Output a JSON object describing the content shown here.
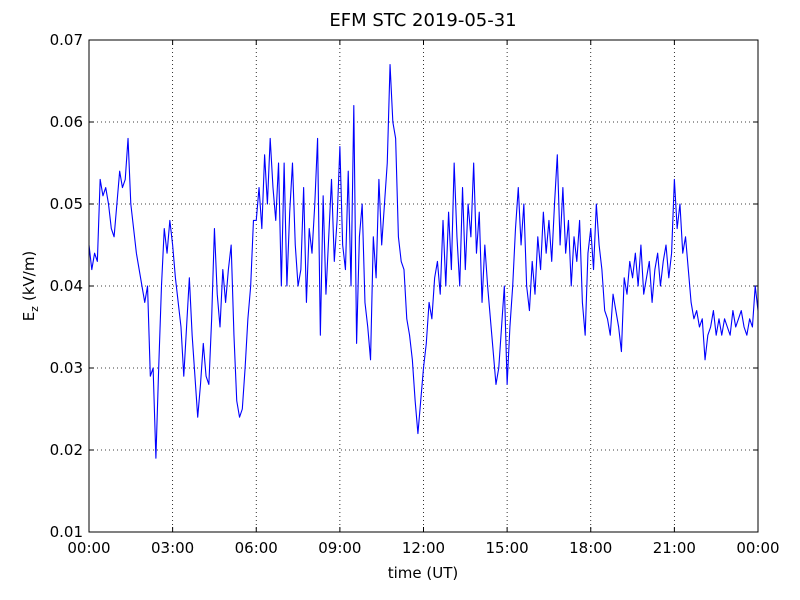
{
  "chart_data": {
    "type": "line",
    "title": "EFM STC    2019-05-31",
    "xlabel": "time (UT)",
    "ylabel": {
      "base": "E",
      "sub": "z",
      "unit": "(kV/m)"
    },
    "xlim": [
      0,
      1440
    ],
    "xticks": [
      {
        "value": 0,
        "label": "00:00"
      },
      {
        "value": 180,
        "label": "03:00"
      },
      {
        "value": 360,
        "label": "06:00"
      },
      {
        "value": 540,
        "label": "09:00"
      },
      {
        "value": 720,
        "label": "12:00"
      },
      {
        "value": 900,
        "label": "15:00"
      },
      {
        "value": 1080,
        "label": "18:00"
      },
      {
        "value": 1260,
        "label": "21:00"
      },
      {
        "value": 1440,
        "label": "00:00"
      }
    ],
    "ylim": [
      0.01,
      0.07
    ],
    "yticks": [
      0.01,
      0.02,
      0.03,
      0.04,
      0.05,
      0.06,
      0.07
    ],
    "grid": true,
    "x": [
      0,
      6,
      12,
      18,
      24,
      30,
      36,
      42,
      48,
      54,
      60,
      66,
      72,
      78,
      84,
      90,
      96,
      102,
      108,
      114,
      120,
      126,
      132,
      138,
      144,
      150,
      156,
      162,
      168,
      174,
      180,
      186,
      192,
      198,
      204,
      210,
      216,
      222,
      228,
      234,
      240,
      246,
      252,
      258,
      264,
      270,
      276,
      282,
      288,
      294,
      300,
      306,
      312,
      318,
      324,
      330,
      336,
      342,
      348,
      354,
      360,
      366,
      372,
      378,
      384,
      390,
      396,
      402,
      408,
      414,
      420,
      426,
      432,
      438,
      444,
      450,
      456,
      462,
      468,
      474,
      480,
      486,
      492,
      498,
      504,
      510,
      516,
      522,
      528,
      534,
      540,
      546,
      552,
      558,
      564,
      570,
      576,
      582,
      588,
      594,
      600,
      606,
      612,
      618,
      624,
      630,
      636,
      642,
      648,
      654,
      660,
      666,
      672,
      678,
      684,
      690,
      696,
      702,
      708,
      714,
      720,
      726,
      732,
      738,
      744,
      750,
      756,
      762,
      768,
      774,
      780,
      786,
      792,
      798,
      804,
      810,
      816,
      822,
      828,
      834,
      840,
      846,
      852,
      858,
      864,
      870,
      876,
      882,
      888,
      894,
      900,
      906,
      912,
      918,
      924,
      930,
      936,
      942,
      948,
      954,
      960,
      966,
      972,
      978,
      984,
      990,
      996,
      1002,
      1008,
      1014,
      1020,
      1026,
      1032,
      1038,
      1044,
      1050,
      1056,
      1062,
      1068,
      1074,
      1080,
      1086,
      1092,
      1098,
      1104,
      1110,
      1116,
      1122,
      1128,
      1134,
      1140,
      1146,
      1152,
      1158,
      1164,
      1170,
      1176,
      1182,
      1188,
      1194,
      1200,
      1206,
      1212,
      1218,
      1224,
      1230,
      1236,
      1242,
      1248,
      1254,
      1260,
      1266,
      1272,
      1278,
      1284,
      1290,
      1296,
      1302,
      1308,
      1314,
      1320,
      1326,
      1332,
      1338,
      1344,
      1350,
      1356,
      1362,
      1368,
      1374,
      1380,
      1386,
      1392,
      1398,
      1404,
      1410,
      1416,
      1422,
      1428,
      1434,
      1440
    ],
    "series": [
      {
        "name": "Ez",
        "color": "#0000ff",
        "values": [
          0.045,
          0.042,
          0.044,
          0.043,
          0.053,
          0.051,
          0.052,
          0.05,
          0.047,
          0.046,
          0.05,
          0.054,
          0.052,
          0.053,
          0.058,
          0.05,
          0.047,
          0.044,
          0.042,
          0.04,
          0.038,
          0.04,
          0.029,
          0.03,
          0.019,
          0.03,
          0.04,
          0.047,
          0.044,
          0.048,
          0.045,
          0.041,
          0.038,
          0.035,
          0.029,
          0.035,
          0.041,
          0.034,
          0.029,
          0.024,
          0.028,
          0.033,
          0.029,
          0.028,
          0.036,
          0.047,
          0.039,
          0.035,
          0.042,
          0.038,
          0.042,
          0.045,
          0.034,
          0.026,
          0.024,
          0.025,
          0.03,
          0.036,
          0.04,
          0.048,
          0.048,
          0.052,
          0.047,
          0.056,
          0.05,
          0.058,
          0.052,
          0.048,
          0.055,
          0.04,
          0.055,
          0.04,
          0.049,
          0.055,
          0.045,
          0.04,
          0.042,
          0.052,
          0.038,
          0.047,
          0.044,
          0.05,
          0.058,
          0.034,
          0.051,
          0.039,
          0.046,
          0.053,
          0.043,
          0.048,
          0.057,
          0.045,
          0.042,
          0.054,
          0.04,
          0.062,
          0.033,
          0.046,
          0.05,
          0.038,
          0.035,
          0.031,
          0.046,
          0.041,
          0.053,
          0.045,
          0.05,
          0.055,
          0.067,
          0.06,
          0.058,
          0.046,
          0.043,
          0.042,
          0.036,
          0.034,
          0.031,
          0.026,
          0.022,
          0.026,
          0.03,
          0.033,
          0.038,
          0.036,
          0.041,
          0.043,
          0.039,
          0.048,
          0.04,
          0.049,
          0.042,
          0.055,
          0.046,
          0.04,
          0.052,
          0.042,
          0.05,
          0.046,
          0.055,
          0.044,
          0.049,
          0.038,
          0.045,
          0.04,
          0.036,
          0.032,
          0.028,
          0.03,
          0.035,
          0.04,
          0.028,
          0.035,
          0.04,
          0.047,
          0.052,
          0.045,
          0.05,
          0.04,
          0.037,
          0.043,
          0.039,
          0.046,
          0.042,
          0.049,
          0.044,
          0.048,
          0.043,
          0.05,
          0.056,
          0.045,
          0.052,
          0.044,
          0.048,
          0.04,
          0.046,
          0.043,
          0.048,
          0.038,
          0.034,
          0.044,
          0.047,
          0.042,
          0.05,
          0.045,
          0.042,
          0.037,
          0.036,
          0.034,
          0.039,
          0.037,
          0.035,
          0.032,
          0.041,
          0.039,
          0.043,
          0.041,
          0.044,
          0.04,
          0.045,
          0.039,
          0.041,
          0.043,
          0.038,
          0.042,
          0.044,
          0.04,
          0.043,
          0.045,
          0.041,
          0.044,
          0.053,
          0.047,
          0.05,
          0.044,
          0.046,
          0.042,
          0.038,
          0.036,
          0.037,
          0.035,
          0.036,
          0.031,
          0.034,
          0.035,
          0.037,
          0.034,
          0.036,
          0.034,
          0.036,
          0.035,
          0.034,
          0.037,
          0.035,
          0.036,
          0.037,
          0.035,
          0.034,
          0.036,
          0.035,
          0.04,
          0.037
        ]
      }
    ]
  }
}
